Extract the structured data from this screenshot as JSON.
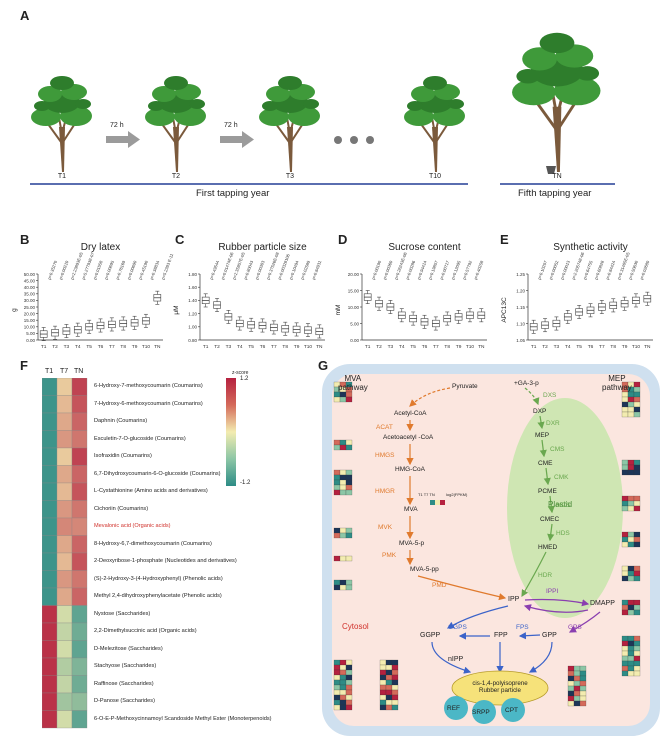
{
  "panels": {
    "A": "A",
    "B": "B",
    "C": "C",
    "D": "D",
    "E": "E",
    "F": "F",
    "G": "G"
  },
  "panel_a": {
    "tree_labels": [
      "T1",
      "T2",
      "T3",
      "T10",
      "TN"
    ],
    "interval_labels": [
      "72 h",
      "72 h"
    ],
    "first_year": "First tapping year",
    "fifth_year": "Fifth tapping year"
  },
  "colors": {
    "leaf": "#3f9a3a",
    "leaf_dark": "#2e7d2c",
    "trunk": "#7b5a3c",
    "timeline": "#5a6eb0",
    "box": "#444444",
    "cytosol": "#cfe0ef",
    "cytosol_inner": "#fbe6df",
    "plastid": "#cfe6b3",
    "mva_orange": "#e07a2d",
    "mep_green": "#6aa84f",
    "blue_arrow": "#3b63c9",
    "purple_arrow": "#8a3fb0",
    "rubber_particle": "#f6e27a",
    "protein": "#4bb7c6",
    "heat_high": "#b5213f",
    "heat_mid": "#f3ecb0",
    "heat_low": "#2d8c86"
  },
  "chart_data": [
    {
      "panel": "B",
      "type": "box",
      "title": "Dry latex",
      "ylabel": "g",
      "categories": [
        "T1",
        "T2",
        "T3",
        "T4",
        "T5",
        "T6",
        "T7",
        "T8",
        "T9",
        "T10",
        "TN"
      ],
      "yticks": [
        "0.00",
        "5.00",
        "10.00",
        "15.00",
        "20.00",
        "25.00",
        "30.00",
        "35.00",
        "40.00",
        "45.00",
        "50.00"
      ],
      "ylim": [
        0,
        50
      ],
      "medians": [
        4.5,
        5.5,
        6.8,
        7.8,
        10.0,
        11.0,
        11.8,
        12.5,
        13.0,
        14.5,
        32.0
      ],
      "pvalues": [
        "p=0.35270",
        "p=0.00210",
        "p=2.23893E-05",
        "p=5.27793E-07",
        "p=0.01558",
        "p=0.00695",
        "p=0.76169",
        "p=0.00690",
        "p=0.45190",
        "p=0.38834",
        "p=5.2393 E-11"
      ]
    },
    {
      "panel": "C",
      "type": "box",
      "title": "Rubber particle size",
      "ylabel": "μM",
      "categories": [
        "T1",
        "T2",
        "T3",
        "T4",
        "T5",
        "T6",
        "T7",
        "T8",
        "T9",
        "T10",
        "TN"
      ],
      "yticks": [
        "0.80",
        "1.00",
        "1.20",
        "1.40",
        "1.60",
        "1.80"
      ],
      "ylim": [
        0.8,
        1.8
      ],
      "medians": [
        1.4,
        1.33,
        1.15,
        1.05,
        1.03,
        1.02,
        0.99,
        0.97,
        0.96,
        0.95,
        0.93
      ],
      "pvalues": [
        "p=0.49544",
        "p=0.01474E-06",
        "p=2.35957E-05",
        "p=0.80043",
        "p=0.00303",
        "p=0.37526E-08",
        "p=0.00328106",
        "p=0.10494",
        "p=0.02589",
        "p=0.84931"
      ]
    },
    {
      "panel": "D",
      "type": "box",
      "title": "Sucrose content",
      "ylabel": "mM",
      "categories": [
        "T1",
        "T2",
        "T3",
        "T4",
        "T5",
        "T6",
        "T7",
        "T8",
        "T9",
        "T10",
        "TN"
      ],
      "yticks": [
        "0.00",
        "5.00",
        "10.00",
        "15.00",
        "20.00"
      ],
      "ylim": [
        0,
        20
      ],
      "medians": [
        13.0,
        11.0,
        10.0,
        7.5,
        6.5,
        5.5,
        5.0,
        6.5,
        7.0,
        7.5,
        7.5
      ],
      "pvalues": [
        "p=0.00190",
        "p=0.00360",
        "p=0.26243E-06",
        "p=0.00286",
        "p=0.94414",
        "p=0.19857",
        "p=0.00717",
        "p=0.12095",
        "p=0.57792",
        "p=0.40258"
      ]
    },
    {
      "panel": "E",
      "type": "box",
      "title": "Synthetic activity",
      "ylabel": "APC13C",
      "categories": [
        "T1",
        "T2",
        "T3",
        "T4",
        "T5",
        "T6",
        "T7",
        "T8",
        "T9",
        "T10",
        "TN"
      ],
      "yticks": [
        "1.05",
        "1.10",
        "1.15",
        "1.20",
        "1.25"
      ],
      "ylim": [
        1.05,
        1.25
      ],
      "medians": [
        1.09,
        1.095,
        1.1,
        1.12,
        1.135,
        1.14,
        1.15,
        1.155,
        1.16,
        1.17,
        1.175
      ],
      "pvalues": [
        "p=0.10207",
        "p=0.00052",
        "p=0.00013",
        "p=2.20574E-06",
        "p=0.64755",
        "p=0.60828",
        "p=0.84424",
        "p=0.31405E-05",
        "p=0.50630",
        "p=0.02680"
      ]
    }
  ],
  "heatmap": {
    "columns": [
      "T1",
      "T7",
      "TN"
    ],
    "legend_title": "z-score",
    "legend_max": "1.2",
    "legend_min": "-1.2",
    "rows": [
      {
        "label": "6-Hydroxy-7-methoxycoumarin (Coumarins)",
        "values": [
          -1.1,
          0.2,
          1.0
        ],
        "highlight": false
      },
      {
        "label": "7-Hydroxy-6-methoxycoumarin (Coumarins)",
        "values": [
          -1.1,
          0.3,
          0.9
        ],
        "highlight": false
      },
      {
        "label": "Daphnin (Coumarins)",
        "values": [
          -1.1,
          0.4,
          0.8
        ],
        "highlight": false
      },
      {
        "label": "Esculetin-7-O-glucoside (Coumarins)",
        "values": [
          -1.1,
          0.5,
          0.7
        ],
        "highlight": false
      },
      {
        "label": "Isofraxidin (Coumarins)",
        "values": [
          -1.1,
          0.2,
          1.0
        ],
        "highlight": false
      },
      {
        "label": "6,7-Dihydroxycoumarin-6-O-glucoside (Coumarins)",
        "values": [
          -1.1,
          0.4,
          0.8
        ],
        "highlight": false
      },
      {
        "label": "L-Cystathionine (Amino acids and derivatives)",
        "values": [
          -1.1,
          0.3,
          0.9
        ],
        "highlight": false
      },
      {
        "label": "Cichoriin (Coumarins)",
        "values": [
          -1.1,
          0.5,
          0.7
        ],
        "highlight": false
      },
      {
        "label": "Mevalonic acid (Organic acids)",
        "values": [
          -1.1,
          0.6,
          0.6
        ],
        "highlight": true
      },
      {
        "label": "8-Hydroxy-6,7-dimethoxycoumarin (Coumarins)",
        "values": [
          -1.1,
          0.4,
          0.8
        ],
        "highlight": false
      },
      {
        "label": "2-Deoxyribose-1-phosphate (Nucleotides and derivatives)",
        "values": [
          -1.1,
          0.3,
          0.9
        ],
        "highlight": false
      },
      {
        "label": "(S)-2-Hydroxy-3-(4-Hydroxyphenyl) (Phenolic acids)",
        "values": [
          -1.1,
          0.5,
          0.7
        ],
        "highlight": false
      },
      {
        "label": "Methyl 2,4-dihydroxyphenylacetate (Phenolic acids)",
        "values": [
          -1.1,
          0.4,
          0.8
        ],
        "highlight": false
      },
      {
        "label": "Nystose (Saccharides)",
        "values": [
          1.1,
          -0.2,
          -0.9
        ],
        "highlight": false
      },
      {
        "label": "2,2-Dimethylsuccinic acid (Organic acids)",
        "values": [
          1.1,
          -0.3,
          -0.8
        ],
        "highlight": false
      },
      {
        "label": "D-Melezitose (Saccharides)",
        "values": [
          1.1,
          -0.2,
          -0.9
        ],
        "highlight": false
      },
      {
        "label": "Stachyose (Saccharides)",
        "values": [
          1.1,
          -0.4,
          -0.7
        ],
        "highlight": false
      },
      {
        "label": "Raffinose (Saccharides)",
        "values": [
          1.1,
          -0.3,
          -0.8
        ],
        "highlight": false
      },
      {
        "label": "D-Panose (Saccharides)",
        "values": [
          1.1,
          -0.5,
          -0.6
        ],
        "highlight": false
      },
      {
        "label": "6-O-E-P-Methoxycinnamoyl Scandoside Methyl Ester (Monoterpenoids)",
        "values": [
          1.1,
          -0.2,
          -0.9
        ],
        "highlight": false
      }
    ]
  },
  "pathway": {
    "mva_title": "MVA\npathway",
    "mep_title": "MEP\npathway",
    "cytosol_label": "Cytosol",
    "plastid_label": "Plastid",
    "rubber_label": "cis-1,4-polyisoprene\nRubber particle",
    "proteins": [
      "REF",
      "SRPP",
      "CPT"
    ],
    "mva_nodes": [
      "Pyruvate",
      "Acetyl-CoA",
      "Acetoacetyl -CoA",
      "HMG-CoA",
      "MVA",
      "MVA-5-p",
      "MVA-5-pp"
    ],
    "mva_enzymes": [
      "ACAT",
      "HMGS",
      "HMGR",
      "MVK",
      "PMK",
      "PMD"
    ],
    "mep_nodes": [
      "+GA-3-p",
      "DXP",
      "MEP",
      "CME",
      "PCME",
      "CMEC",
      "HMED"
    ],
    "mep_enzymes": [
      "DXS",
      "DXR",
      "CMS",
      "CMK",
      "MCS",
      "HDS",
      "HDR"
    ],
    "center_nodes": [
      "IPP",
      "DMAPP",
      "GGPP",
      "FPP",
      "GPP",
      "nIPP"
    ],
    "center_enzymes": [
      "IPPI",
      "GGPS",
      "FPS",
      "GPS"
    ],
    "mini_heat_header": "T1 T7 TN",
    "mini_heat_scale": "log2(FPKM)"
  }
}
